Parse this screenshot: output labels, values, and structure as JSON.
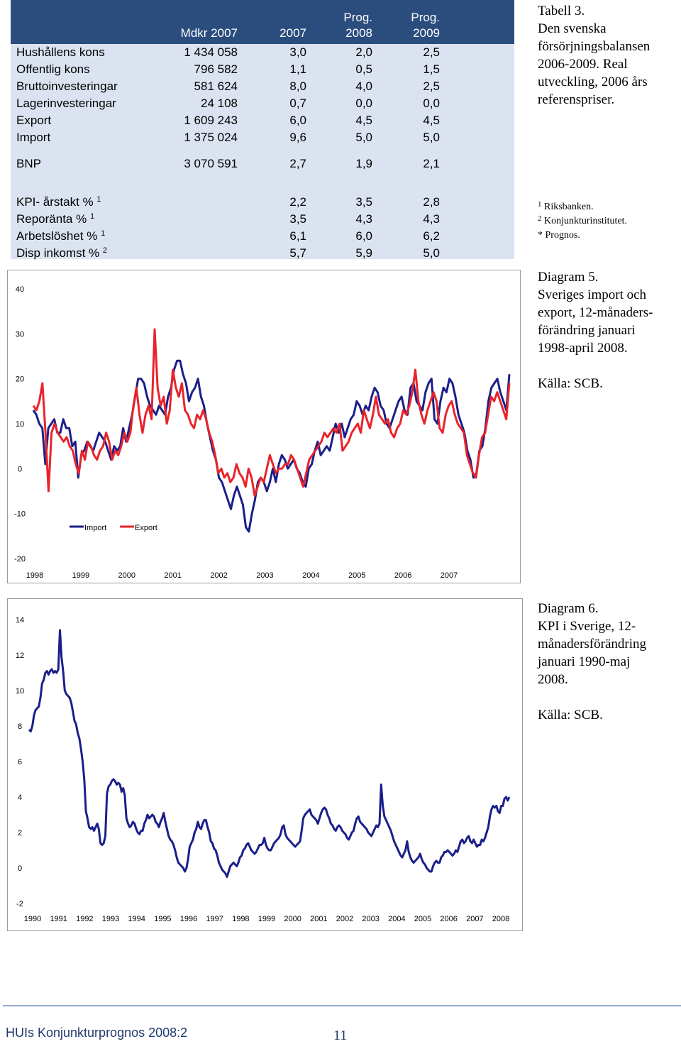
{
  "table": {
    "header": {
      "col1": "Mdkr 2007",
      "col2": "2007",
      "col3_line1": "Prog.",
      "col3_line2": "2008",
      "col4_line1": "Prog.",
      "col4_line2": "2009"
    },
    "rows": [
      {
        "label": "Hushållens kons",
        "v1": "1 434 058",
        "v2": "3,0",
        "v3": "2,0",
        "v4": "2,5"
      },
      {
        "label": "Offentlig kons",
        "v1": "796 582",
        "v2": "1,1",
        "v3": "0,5",
        "v4": "1,5"
      },
      {
        "label": "Bruttoinvesteringar",
        "v1": "581 624",
        "v2": "8,0",
        "v3": "4,0",
        "v4": "2,5"
      },
      {
        "label": "Lagerinvesteringar",
        "v1": "24 108",
        "v2": "0,7",
        "v3": "0,0",
        "v4": "0,0"
      },
      {
        "label": "Export",
        "v1": "1 609 243",
        "v2": "6,0",
        "v3": "4,5",
        "v4": "4,5"
      },
      {
        "label": "Import",
        "v1": "1 375 024",
        "v2": "9,6",
        "v3": "5,0",
        "v4": "5,0"
      }
    ],
    "bnp": {
      "label": "BNP",
      "v1": "3 070 591",
      "v2": "2,7",
      "v3": "1,9",
      "v4": "2,1"
    },
    "rows2": [
      {
        "label": "KPI- årstakt %",
        "sup": "1",
        "v2": "2,2",
        "v3": "3,5",
        "v4": "2,8"
      },
      {
        "label": "Reporänta %",
        "sup": "1",
        "v2": "3,5",
        "v3": "4,3",
        "v4": "4,3"
      },
      {
        "label": "Arbetslöshet %",
        "sup": "1",
        "v2": "6,1",
        "v3": "6,0",
        "v4": "6,2"
      },
      {
        "label": "Disp inkomst %",
        "sup": "2",
        "v2": "5,7",
        "v3": "5,9",
        "v4": "5,0"
      }
    ]
  },
  "caption_table": {
    "line1": "Tabell 3.",
    "line2": "Den svenska",
    "line3": "försörjningsbalansen",
    "line4": "2006-2009. Real",
    "line5": "utveckling, 2006 års",
    "line6": "referenspriser."
  },
  "footnotes": {
    "f1_sup": "1",
    "f1": "Riksbanken.",
    "f2_sup": "2",
    "f2": "Konjunkturinstitutet.",
    "f3": "* Prognos."
  },
  "caption_d5": {
    "line1": "Diagram 5.",
    "line2": "Sveriges import och",
    "line3": "export, 12-månaders-",
    "line4": "förändring januari",
    "line5": "1998-april 2008.",
    "source": "Källa: SCB."
  },
  "caption_d6": {
    "line1": "Diagram 6.",
    "line2": "KPI i Sverige, 12-",
    "line3": "månadersförändring",
    "line4": "januari 1990-maj",
    "line5": "2008.",
    "source": "Källa: SCB."
  },
  "chart_data": [
    {
      "type": "line",
      "title": "",
      "x_tick_labels": [
        "1998",
        "1999",
        "2000",
        "2001",
        "2002",
        "2003",
        "2004",
        "2005",
        "2006",
        "2007"
      ],
      "y_tick_labels": [
        "40",
        "30",
        "20",
        "10",
        "0",
        "-10",
        "-20"
      ],
      "ylim": [
        -20,
        40
      ],
      "x_start": "1998-01",
      "x_end": "2008-04",
      "legend_placement": "lower-left",
      "colors": {
        "Import": "#1b1f8a",
        "Export": "#e8242a"
      },
      "series": [
        {
          "name": "Import",
          "values": [
            13,
            12,
            10,
            9,
            1,
            9,
            10,
            11,
            8,
            8,
            11,
            9,
            9,
            5,
            6,
            -2,
            3,
            4,
            6,
            5,
            4,
            6,
            8,
            7,
            6,
            4,
            2,
            5,
            4,
            5,
            9,
            6,
            9,
            12,
            16,
            20,
            20,
            19,
            16,
            14,
            13,
            12,
            14,
            13,
            12,
            16,
            18,
            22,
            24,
            24,
            21,
            19,
            15,
            17,
            18,
            20,
            16,
            14,
            10,
            7,
            4,
            2,
            -2,
            -3,
            -5,
            -7,
            -9,
            -6,
            -4,
            -6,
            -8,
            -13,
            -14,
            -10,
            -7,
            -3,
            -2,
            -3,
            -5,
            -3,
            0,
            -3,
            1,
            3,
            2,
            0,
            1,
            2,
            0,
            -1,
            -3,
            -4,
            0,
            1,
            4,
            6,
            3,
            4,
            5,
            4,
            7,
            10,
            8,
            10,
            7,
            9,
            11,
            12,
            15,
            14,
            12,
            14,
            13,
            16,
            18,
            17,
            14,
            13,
            10,
            9,
            11,
            13,
            15,
            16,
            13,
            12,
            18,
            19,
            15,
            14,
            13,
            17,
            19,
            20,
            11,
            10,
            15,
            18,
            17,
            20,
            19,
            16,
            12,
            10,
            8,
            4,
            2,
            -2,
            -1,
            4,
            5,
            9,
            15,
            18,
            19,
            20,
            17,
            15,
            13,
            21
          ]
        },
        {
          "name": "Export",
          "values": [
            14,
            13,
            15,
            19,
            8,
            -5,
            8,
            10,
            8,
            7,
            6,
            7,
            5,
            4,
            1,
            -1,
            4,
            2,
            6,
            5,
            3,
            2,
            4,
            5,
            8,
            6,
            2,
            4,
            3,
            5,
            8,
            6,
            8,
            14,
            18,
            12,
            8,
            12,
            14,
            11,
            31,
            18,
            14,
            16,
            10,
            13,
            22,
            18,
            16,
            19,
            13,
            12,
            10,
            9,
            12,
            11,
            13,
            11,
            8,
            6,
            3,
            -1,
            0,
            -2,
            -1,
            -3,
            -2,
            1,
            -1,
            -2,
            -4,
            0,
            -2,
            -6,
            -4,
            -2,
            -3,
            0,
            3,
            1,
            -1,
            0,
            0,
            1,
            1,
            3,
            2,
            0,
            -2,
            -4,
            -1,
            2,
            3,
            4,
            5,
            6,
            8,
            7,
            8,
            9,
            8,
            10,
            4,
            5,
            6,
            8,
            9,
            10,
            8,
            13,
            11,
            9,
            12,
            16,
            12,
            11,
            10,
            11,
            8,
            7,
            9,
            10,
            13,
            12,
            14,
            17,
            22,
            15,
            12,
            10,
            13,
            15,
            17,
            15,
            9,
            8,
            12,
            14,
            15,
            12,
            10,
            9,
            8,
            3,
            1,
            -1,
            -2,
            3,
            7,
            8,
            12,
            16,
            15,
            17,
            15,
            13,
            11,
            19
          ]
        }
      ]
    },
    {
      "type": "line",
      "title": "",
      "x_tick_labels": [
        "1990",
        "1991",
        "1992",
        "1993",
        "1994",
        "1995",
        "1996",
        "1997",
        "1998",
        "1999",
        "2000",
        "2001",
        "2002",
        "2003",
        "2004",
        "2005",
        "2006",
        "2007",
        "2008"
      ],
      "y_tick_labels": [
        "14",
        "12",
        "10",
        "8",
        "6",
        "4",
        "2",
        "0",
        "-2"
      ],
      "ylim": [
        -2,
        14
      ],
      "x_start": "1990-01",
      "x_end": "2008-05",
      "legend_placement": "none",
      "colors": {
        "KPI": "#1b1f8a"
      },
      "series": [
        {
          "name": "KPI",
          "values": [
            7.8,
            7.7,
            8.0,
            8.6,
            8.9,
            9.0,
            9.1,
            9.6,
            10.4,
            10.6,
            11.0,
            11.1,
            10.9,
            11.1,
            11.2,
            11.0,
            11.1,
            11.0,
            11.2,
            13.4,
            11.9,
            11.1,
            10.0,
            9.8,
            9.7,
            9.6,
            9.3,
            8.8,
            8.3,
            8.1,
            7.6,
            7.3,
            6.7,
            6.0,
            5.0,
            3.2,
            2.8,
            2.3,
            2.2,
            2.3,
            2.1,
            2.3,
            2.5,
            2.2,
            1.4,
            1.3,
            1.4,
            1.8,
            4.2,
            4.6,
            4.7,
            4.9,
            5.0,
            4.9,
            4.7,
            4.8,
            4.7,
            4.3,
            4.5,
            4.1,
            2.8,
            2.5,
            2.3,
            2.4,
            2.6,
            2.5,
            2.2,
            2.0,
            1.9,
            2.1,
            2.1,
            2.5,
            2.7,
            3.0,
            2.8,
            2.9,
            3.0,
            2.9,
            2.6,
            2.5,
            2.3,
            2.6,
            2.8,
            3.1,
            2.6,
            2.2,
            1.8,
            1.6,
            1.5,
            1.3,
            1.0,
            0.6,
            0.3,
            0.2,
            0.1,
            0.0,
            -0.2,
            0.0,
            0.5,
            1.2,
            1.4,
            1.6,
            2.0,
            2.2,
            2.6,
            2.3,
            2.2,
            2.5,
            2.7,
            2.7,
            2.3,
            2.0,
            1.5,
            1.4,
            1.1,
            1.0,
            0.7,
            0.3,
            0.1,
            -0.1,
            -0.2,
            -0.3,
            -0.5,
            -0.2,
            0.1,
            0.2,
            0.3,
            0.2,
            0.1,
            0.3,
            0.6,
            0.7,
            1.0,
            1.1,
            1.3,
            1.4,
            1.2,
            1.0,
            0.9,
            0.8,
            0.9,
            1.1,
            1.3,
            1.3,
            1.4,
            1.7,
            1.3,
            1.1,
            1.0,
            1.0,
            1.2,
            1.4,
            1.5,
            1.6,
            1.7,
            1.9,
            2.3,
            2.4,
            1.9,
            1.7,
            1.6,
            1.5,
            1.4,
            1.3,
            1.2,
            1.3,
            1.4,
            1.5,
            2.1,
            2.8,
            3.0,
            3.1,
            3.2,
            3.3,
            3.0,
            2.9,
            2.8,
            2.7,
            2.5,
            2.8,
            3.1,
            3.3,
            3.4,
            3.3,
            3.0,
            2.8,
            2.5,
            2.4,
            2.2,
            2.1,
            2.3,
            2.4,
            2.3,
            2.1,
            2.0,
            1.9,
            1.7,
            1.6,
            1.8,
            2.0,
            2.1,
            2.5,
            2.8,
            2.9,
            2.6,
            2.5,
            2.4,
            2.3,
            2.2,
            2.0,
            1.9,
            1.8,
            2.0,
            2.2,
            2.4,
            2.3,
            2.5,
            4.7,
            3.5,
            2.9,
            2.7,
            2.5,
            2.3,
            2.1,
            1.8,
            1.5,
            1.3,
            1.1,
            0.9,
            0.7,
            0.6,
            0.8,
            1.0,
            1.5,
            0.9,
            0.6,
            0.4,
            0.3,
            0.4,
            0.5,
            0.6,
            0.8,
            0.5,
            0.3,
            0.2,
            0.0,
            -0.1,
            -0.2,
            -0.2,
            0.1,
            0.3,
            0.4,
            0.3,
            0.3,
            0.6,
            0.7,
            0.9,
            0.9,
            1.0,
            0.9,
            0.8,
            0.7,
            0.8,
            1.0,
            0.9,
            1.2,
            1.5,
            1.6,
            1.4,
            1.5,
            1.7,
            1.8,
            1.5,
            1.4,
            1.6,
            1.4,
            1.2,
            1.3,
            1.3,
            1.6,
            1.5,
            1.7,
            2.0,
            2.3,
            2.9,
            3.3,
            3.5,
            3.4,
            3.5,
            3.2,
            3.1,
            3.5,
            3.5,
            3.9,
            4.0,
            3.8,
            4.0
          ]
        }
      ]
    }
  ],
  "legend": {
    "import": "Import",
    "export": "Export"
  },
  "footer": {
    "left": "HUIs Konjunkturprognos 2008:2",
    "page": "11"
  }
}
